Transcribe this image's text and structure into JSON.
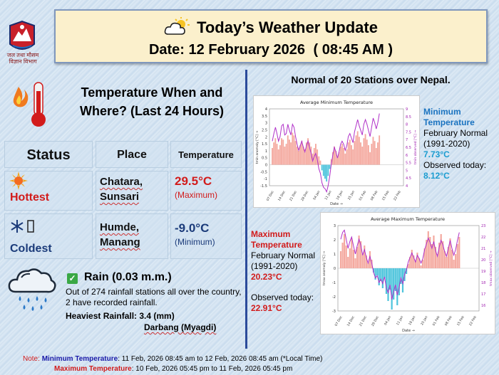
{
  "header": {
    "logo_text_line1": "जल तथा मौसम",
    "logo_text_line2": "विज्ञान विभाग",
    "title": "Today’s Weather Update",
    "date_label": "Date:",
    "date_value": "12 February 2026",
    "time_value": "( 08:45 AM )"
  },
  "left": {
    "heading": "Temperature When and Where?  (Last 24 Hours)",
    "table_headers": {
      "status": "Status",
      "place": "Place",
      "temperature": "Temperature"
    },
    "hottest": {
      "label": "Hottest",
      "place_line1": "Chatara,",
      "place_line2": "Sunsari",
      "value": "29.5°C",
      "type": "(Maximum)",
      "color": "#d21b1b"
    },
    "coldest": {
      "label": "Coldest",
      "place_line1": "Humde,",
      "place_line2": "Manang",
      "value": "-9.0°C",
      "type": "(Minimum)",
      "color": "#1b3b7a"
    },
    "rain": {
      "title": "Rain  (0.03 m.m.)",
      "description": "Out of 274 rainfall stations all over the country, 2 have recorded rainfall.",
      "heaviest": "Heaviest Rainfall: 3.4 (mm)",
      "station": "Darbang (Myagdi)"
    }
  },
  "right": {
    "title": "Normal of 20 Stations over Nepal.",
    "min": {
      "label": "Minimum Temperature",
      "normal_label": "February Normal (1991-2020)",
      "normal_value": "7.73°C",
      "observed_label": "Observed today:",
      "observed_value": "8.12°C"
    },
    "max": {
      "label": "Maximum Temperature",
      "normal_label": "February Normal (1991-2020)",
      "normal_value": "20.23°C",
      "observed_label": "Observed today:",
      "observed_value": "22.91°C"
    }
  },
  "charts": {
    "min_title": "Average Minimum Temperature",
    "max_title": "Average Maximum Temperature",
    "min_ylabel": "tmin anomaly [°C] →",
    "min_y2label": "tmin observed [°C] →",
    "max_ylabel": "tmax anomaly [°C] →",
    "max_y2label": "tmax observed [°C] →",
    "xlabel": "Date →",
    "min_yticks": [
      "4",
      "3.5",
      "3",
      "2.5",
      "2",
      "1.5",
      "1",
      "0.5",
      "0",
      "-0.5",
      "-1",
      "-1.5"
    ],
    "min_y2ticks": [
      "9",
      "8.5",
      "8",
      "7.5",
      "7",
      "6.5",
      "6",
      "5.5",
      "5",
      "4.5",
      "4"
    ],
    "max_yticks": [
      "3",
      "2",
      "1",
      "0",
      "-1",
      "-2",
      "-3"
    ],
    "max_y2ticks": [
      "23",
      "22",
      "21",
      "20",
      "19",
      "18",
      "17",
      "16"
    ],
    "xticks": [
      "07 Dec",
      "14 Dec",
      "21 Dec",
      "28 Dec",
      "04 Jan",
      "11 Jan",
      "18 Jan",
      "25 Jan",
      "01 Feb",
      "08 Feb",
      "15 Feb",
      "22 Feb"
    ]
  },
  "chart_data": [
    {
      "type": "bar",
      "title": "Average Minimum Temperature",
      "xlabel": "Date →",
      "ylabel": "tmin anomaly [°C] →",
      "ylim": [
        -1.5,
        4
      ],
      "y2label": "tmin observed [°C] →",
      "y2lim": [
        4,
        9
      ],
      "anomaly": [
        1.2,
        1.6,
        1.9,
        1.5,
        1.1,
        1.4,
        1.9,
        1.8,
        1.3,
        1.5,
        2.1,
        1.8,
        1.6,
        2.3,
        2.1,
        1.7,
        1.3,
        1.0,
        1.4,
        1.7,
        1.3,
        1.1,
        1.6,
        1.9,
        1.6,
        1.3,
        0.8,
        1.2,
        1.5,
        1.1,
        0.6,
        0.3,
        -0.4,
        -0.8,
        -1.0,
        -1.2,
        -0.8,
        -0.3,
        0.4,
        0.9,
        1.3,
        1.0,
        0.6,
        0.9,
        1.3,
        1.5,
        1.2,
        0.8,
        1.1,
        1.6,
        1.8,
        1.4,
        1.1,
        1.7,
        2.1,
        2.4,
        2.0,
        1.6,
        1.3,
        1.9,
        2.2,
        1.8,
        1.4,
        0.9,
        1.5,
        2.0,
        1.7,
        1.2,
        1.6,
        2.1
      ],
      "observed": [
        6.9,
        7.4,
        7.8,
        7.4,
        6.9,
        7.2,
        7.9,
        8.0,
        7.3,
        7.4,
        8.0,
        7.6,
        7.3,
        8.0,
        7.8,
        7.2,
        6.7,
        6.3,
        6.6,
        6.9,
        6.5,
        6.2,
        6.6,
        6.9,
        6.5,
        6.1,
        5.6,
        5.9,
        6.1,
        5.7,
        5.1,
        4.8,
        4.2,
        3.9,
        3.8,
        3.6,
        4.0,
        4.6,
        5.4,
        6.0,
        6.5,
        6.2,
        5.8,
        6.2,
        6.7,
        6.9,
        6.7,
        6.3,
        6.6,
        7.2,
        7.4,
        7.1,
        6.8,
        7.5,
        7.9,
        8.3,
        7.9,
        7.6,
        7.3,
        8.0,
        8.3,
        8.0,
        7.6,
        7.2,
        7.8,
        8.4,
        8.1,
        7.7,
        8.1,
        8.7
      ]
    },
    {
      "type": "bar",
      "title": "Average Maximum Temperature",
      "xlabel": "Date →",
      "ylabel": "tmax anomaly [°C] →",
      "ylim": [
        -3,
        3
      ],
      "y2label": "tmax observed [°C] →",
      "y2lim": [
        15.5,
        23
      ],
      "anomaly": [
        1.2,
        1.8,
        2.4,
        1.6,
        0.8,
        1.4,
        2.1,
        1.3,
        0.7,
        1.5,
        2.3,
        1.9,
        1.0,
        1.6,
        0.9,
        0.4,
        1.2,
        0.6,
        -0.3,
        -0.8,
        -0.5,
        -1.2,
        -0.9,
        -1.4,
        -0.7,
        -1.8,
        -2.3,
        -1.5,
        -2.9,
        -2.2,
        -1.6,
        -2.6,
        -1.9,
        -1.1,
        -1.7,
        -0.9,
        -0.4,
        0.3,
        0.8,
        1.3,
        0.9,
        0.5,
        1.1,
        0.7,
        0.2,
        0.6,
        1.4,
        2.0,
        2.6,
        2.2,
        1.7,
        2.3,
        1.5,
        1.0,
        1.8,
        2.4,
        1.9,
        1.2,
        0.8,
        1.5,
        2.1,
        1.3,
        0.6,
        1.0,
        1.7,
        2.2
      ],
      "observed": [
        21.8,
        22.4,
        22.6,
        21.8,
        21.0,
        21.6,
        22.0,
        21.2,
        20.5,
        21.2,
        21.8,
        21.3,
        20.4,
        20.9,
        20.2,
        19.7,
        20.3,
        19.7,
        18.9,
        18.4,
        18.6,
        18.0,
        18.3,
        17.9,
        18.5,
        17.5,
        17.1,
        17.8,
        16.5,
        17.2,
        17.8,
        16.9,
        17.6,
        18.4,
        17.9,
        18.7,
        19.1,
        19.8,
        20.2,
        20.6,
        20.2,
        19.8,
        20.4,
        20.1,
        19.7,
        20.1,
        20.9,
        21.4,
        21.9,
        21.5,
        21.0,
        21.6,
        20.8,
        20.3,
        21.1,
        21.7,
        21.3,
        20.7,
        20.3,
        21.0,
        21.7,
        21.0,
        20.4,
        20.9,
        21.7,
        22.4
      ]
    }
  ],
  "footer": {
    "note_prefix": "Note:",
    "min_label": "Minimum Temperature",
    "min_range": ": 11 Feb, 2026  08:45 am  to 12 Feb, 2026  08:45 am (*Local Time)",
    "max_label": "Maximum Temperature",
    "max_range": ":  10 Feb, 2026  05:45 pm  to 11 Feb, 2026  05:45 pm"
  },
  "colors": {
    "accent_blue": "#2b4a9a",
    "hot_red": "#d21b1b",
    "cold_navy": "#1b3b7a",
    "bar_positive": "#f4a99f",
    "bar_negative": "#4dc4dc",
    "line_observed": "#b030c8"
  }
}
